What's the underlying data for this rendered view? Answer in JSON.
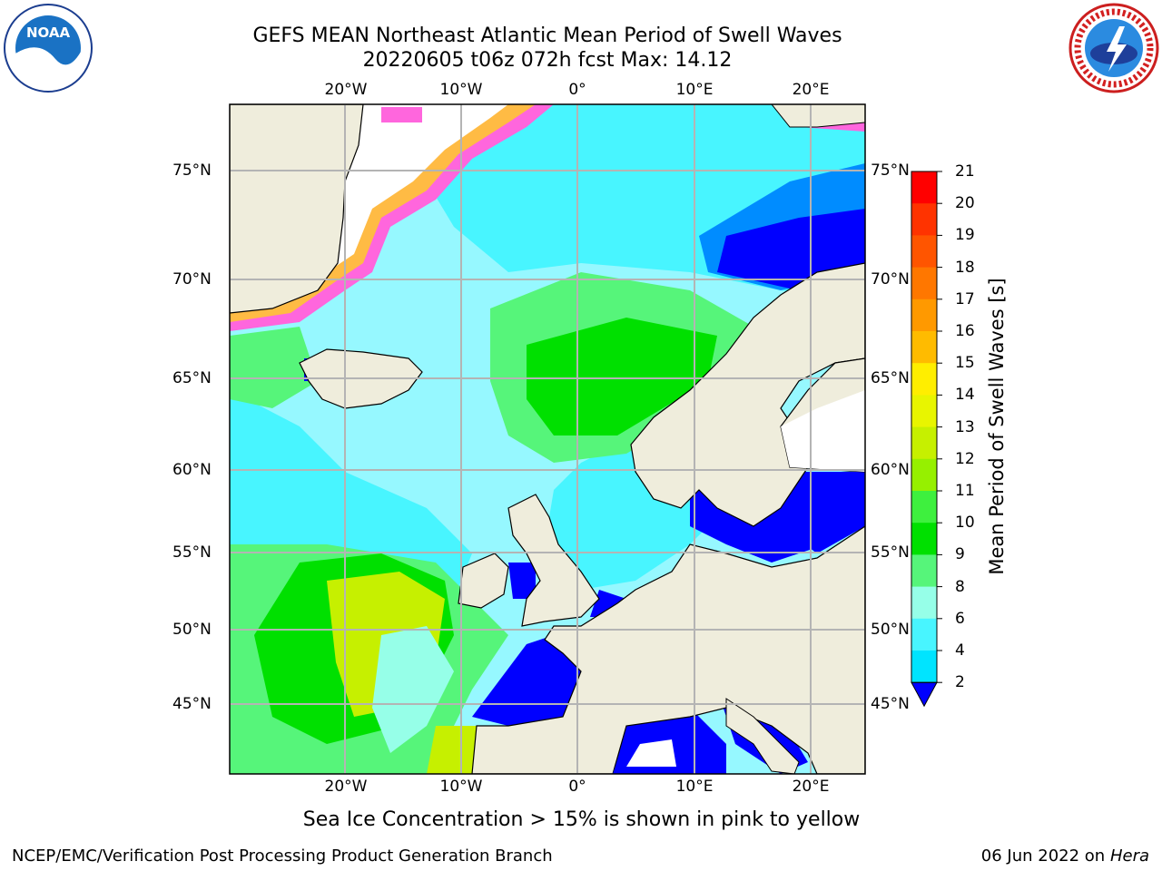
{
  "title": {
    "line1": "GEFS MEAN Northeast Atlantic Mean Period of Swell Waves",
    "line2": "20220605 t06z 072h fcst   Max: 14.12"
  },
  "map": {
    "top_lon_labels": [
      "20°W",
      "10°W",
      "0°",
      "10°E",
      "20°E"
    ],
    "bottom_lon_labels": [
      "20°W",
      "10°W",
      "0°",
      "10°E",
      "20°E"
    ],
    "left_lat_labels": [
      "75°N",
      "70°N",
      "65°N",
      "60°N",
      "55°N",
      "50°N",
      "45°N"
    ],
    "right_lat_labels": [
      "75°N",
      "70°N",
      "65°N",
      "60°N",
      "55°N",
      "50°N",
      "45°N"
    ],
    "gridlines": true,
    "colors": {
      "land": "#efeddc",
      "ocean_base": "#96f8ff",
      "grid": "#b4b4b4"
    }
  },
  "colorbar": {
    "title": "Mean Period of Swell Waves [s]",
    "tick_labels": [
      "21",
      "20",
      "19",
      "18",
      "17",
      "16",
      "15",
      "14",
      "13",
      "12",
      "11",
      "10",
      "9",
      "8",
      "6",
      "4",
      "2"
    ],
    "colors": [
      "#ff0000",
      "#ff3300",
      "#ff5500",
      "#ff7700",
      "#ff9900",
      "#ffbb00",
      "#ffee00",
      "#e8f500",
      "#c6f000",
      "#96f000",
      "#3ef03e",
      "#00e000",
      "#56f57a",
      "#96ffe8",
      "#48f5ff",
      "#00e4ff",
      "#008cff",
      "#0000ff"
    ],
    "min_extend_color": "#0000ff"
  },
  "ice_note": "Sea Ice Concentration > 15% is shown in pink to yellow",
  "footer": {
    "left": "NCEP/EMC/Verification Post Processing Product Generation Branch",
    "date": "06 Jun 2022 on",
    "host": "Hera"
  },
  "logos": {
    "noaa": {
      "text": "NOAA",
      "ring_text": "NATIONAL OCEANIC AND ATMOSPHERIC ADMINISTRATION"
    },
    "nws": {
      "ring_text": "NATIONAL WEATHER SERVICE"
    }
  }
}
